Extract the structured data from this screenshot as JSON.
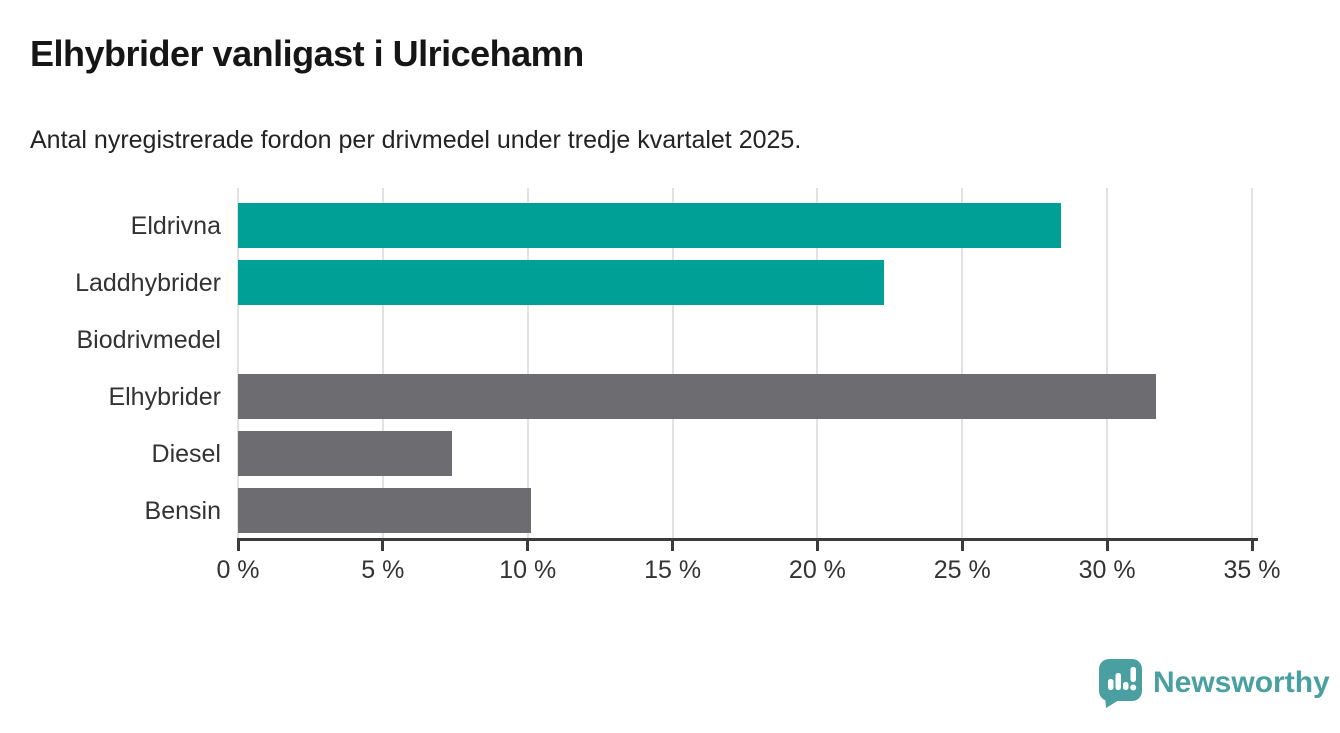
{
  "header": {
    "title": "Elhybrider vanligast i Ulricehamn",
    "subtitle": "Antal nyregistrerade fordon per drivmedel under tredje kvartalet 2025."
  },
  "chart_data": {
    "type": "bar",
    "orientation": "horizontal",
    "title": "Elhybrider vanligast i Ulricehamn",
    "subtitle": "Antal nyregistrerade fordon per drivmedel under tredje kvartalet 2025.",
    "categories": [
      "Eldrivna",
      "Laddhybrider",
      "Biodrivmedel",
      "Elhybrider",
      "Diesel",
      "Bensin"
    ],
    "values": [
      28.4,
      22.3,
      0,
      31.7,
      7.4,
      10.1
    ],
    "unit": "%",
    "bar_colors": [
      "#00a096",
      "#00a096",
      "#00a096",
      "#6d6d71",
      "#6d6d71",
      "#6d6d71"
    ],
    "xlabel": "",
    "ylabel": "",
    "xlim": [
      0,
      35
    ],
    "x_ticks": [
      0,
      5,
      10,
      15,
      20,
      25,
      30,
      35
    ],
    "x_tick_labels": [
      "0 %",
      "5 %",
      "10 %",
      "15 %",
      "20 %",
      "25 %",
      "30 %",
      "35 %"
    ],
    "grid": "vertical",
    "legend": "none"
  },
  "footer": {
    "brand": "Newsworthy"
  },
  "colors": {
    "teal_bar": "#00a096",
    "gray_bar": "#6d6d71",
    "gridline": "#e2e2e2",
    "axis": "#3b3b3b",
    "text": "#333333",
    "logo": "#4aa0a0"
  }
}
